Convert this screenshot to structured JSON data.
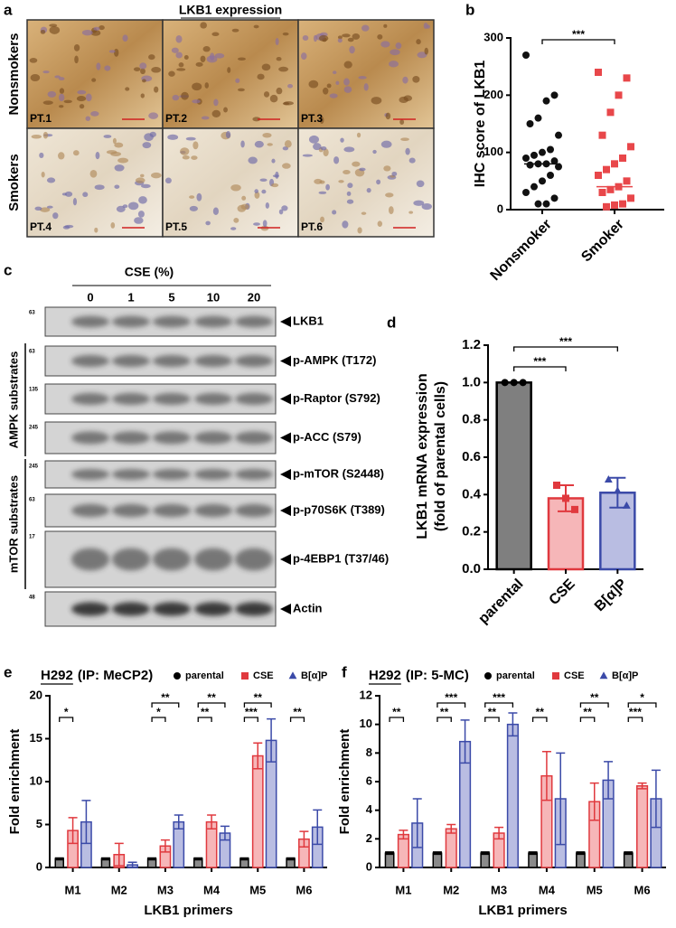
{
  "figure": {
    "panel_a": {
      "letter": "a",
      "title": "LKB1 expression",
      "row_labels": [
        "Nonsmokers",
        "Smokers"
      ],
      "images": [
        "PT.1",
        "PT.2",
        "PT.3",
        "PT.4",
        "PT.5",
        "PT.6"
      ]
    },
    "panel_c": {
      "letter": "c",
      "title": "CSE (%)",
      "lanes": [
        "0",
        "1",
        "5",
        "10",
        "20"
      ],
      "bands": [
        {
          "label": "LKB1",
          "marker": "63"
        },
        {
          "label": "p-AMPK (T172)",
          "marker": "63"
        },
        {
          "label": "p-Raptor (S792)",
          "marker": "135"
        },
        {
          "label": "p-ACC (S79)",
          "marker": "245"
        },
        {
          "label": "p-mTOR (S2448)",
          "marker": "245"
        },
        {
          "label": "p-p70S6K (T389)",
          "marker": "63"
        },
        {
          "label": "p-4EBP1 (T37/46)",
          "marker": "17"
        },
        {
          "label": "Actin",
          "marker": "48"
        }
      ],
      "groups": [
        "AMPK substrates",
        "mTOR substrates"
      ]
    }
  },
  "chart_data": [
    {
      "type": "strip",
      "letter": "b",
      "ylabel": "IHC score of LKB1",
      "categories": [
        "Nonsmoker",
        "Smoker"
      ],
      "colors": [
        "#111111",
        "#e8474a"
      ],
      "markers": [
        "circle",
        "square"
      ],
      "points": [
        [
          270,
          200,
          190,
          160,
          150,
          130,
          105,
          100,
          95,
          90,
          85,
          80,
          80,
          78,
          75,
          60,
          50,
          40,
          30,
          20,
          10,
          10
        ],
        [
          240,
          230,
          200,
          170,
          130,
          110,
          90,
          80,
          70,
          60,
          50,
          40,
          35,
          30,
          20,
          10,
          8,
          5
        ]
      ],
      "medians": [
        80,
        40
      ],
      "ylim": [
        0,
        300
      ],
      "yticks": [
        0,
        100,
        200,
        300
      ],
      "significance": "***"
    },
    {
      "type": "bar",
      "letter": "d",
      "ylabel": [
        "LKB1 mRNA expression",
        "(fold of parental cells)"
      ],
      "categories": [
        "parental",
        "CSE",
        "B[α]P"
      ],
      "values": [
        1.0,
        0.38,
        0.41
      ],
      "errors": [
        0,
        0.07,
        0.08
      ],
      "points": [
        [
          1,
          1,
          1
        ],
        [
          0.45,
          0.38,
          0.32
        ],
        [
          0.48,
          0.42,
          0.34
        ]
      ],
      "colors": [
        "#7f7f7f",
        "#f6b6b8",
        "#b9bde2"
      ],
      "edge_colors": [
        "#000000",
        "#e0393e",
        "#3b4aa8"
      ],
      "markers": [
        "circle",
        "square",
        "triangle"
      ],
      "significance": [
        null,
        "***",
        "***"
      ],
      "ylim": [
        0,
        1.2
      ],
      "yticks": [
        {
          "value": 0,
          "label": "0.0"
        },
        0.2,
        0.4,
        0.6,
        0.8,
        {
          "value": 1,
          "label": "1.0"
        },
        1.2
      ]
    },
    {
      "type": "grouped-bar",
      "letter": "e",
      "title": "H292",
      "subtitle": "(IP: MeCP2)",
      "xlabel": "LKB1 primers",
      "ylabel": "Fold enrichment",
      "categories": [
        "M1",
        "M2",
        "M3",
        "M4",
        "M5",
        "M6"
      ],
      "ylim": [
        0,
        20
      ],
      "yticks": [
        0,
        5,
        10,
        15,
        20
      ],
      "series": [
        {
          "name": "parental",
          "color": "#8a8a8a",
          "edge": "#000000",
          "marker": "circle",
          "values": [
            1,
            1,
            1,
            1,
            1,
            1
          ],
          "errors": [
            0.1,
            0.1,
            0.1,
            0.1,
            0.1,
            0.1
          ]
        },
        {
          "name": "CSE",
          "color": "#f6b6b8",
          "edge": "#e0393e",
          "marker": "square",
          "values": [
            4.3,
            1.5,
            2.5,
            5.3,
            13,
            3.3
          ],
          "errors": [
            1.5,
            1.3,
            0.7,
            0.8,
            1.5,
            0.9
          ],
          "significance": [
            "*",
            null,
            "*",
            "**",
            "***",
            "**"
          ]
        },
        {
          "name": "B[α]P",
          "color": "#b9bde2",
          "edge": "#3b4aa8",
          "marker": "triangle",
          "values": [
            5.3,
            0.3,
            5.3,
            4,
            14.8,
            4.7
          ],
          "errors": [
            2.5,
            0.3,
            0.8,
            0.8,
            2.5,
            2
          ],
          "significance": [
            null,
            null,
            "**",
            "**",
            "**",
            null
          ]
        }
      ]
    },
    {
      "type": "grouped-bar",
      "letter": "f",
      "title": "H292",
      "subtitle": "(IP: 5-MC)",
      "xlabel": "LKB1 primers",
      "ylabel": "Fold enrichment",
      "categories": [
        "M1",
        "M2",
        "M3",
        "M4",
        "M5",
        "M6"
      ],
      "ylim": [
        0,
        12
      ],
      "yticks": [
        0,
        2,
        4,
        6,
        8,
        10,
        12
      ],
      "series": [
        {
          "name": "parental",
          "color": "#8a8a8a",
          "edge": "#000000",
          "marker": "circle",
          "values": [
            1,
            1,
            1,
            1,
            1,
            1
          ],
          "errors": [
            0.08,
            0.08,
            0.08,
            0.08,
            0.08,
            0.08
          ]
        },
        {
          "name": "CSE",
          "color": "#f6b6b8",
          "edge": "#e0393e",
          "marker": "square",
          "values": [
            2.3,
            2.7,
            2.4,
            6.4,
            4.6,
            5.7
          ],
          "errors": [
            0.3,
            0.3,
            0.4,
            1.7,
            1.3,
            0.2
          ],
          "significance": [
            "**",
            "**",
            "**",
            "**",
            "**",
            "***"
          ]
        },
        {
          "name": "B[α]P",
          "color": "#b9bde2",
          "edge": "#3b4aa8",
          "marker": "triangle",
          "values": [
            3.1,
            8.8,
            10,
            4.8,
            6.1,
            4.8
          ],
          "errors": [
            1.7,
            1.5,
            0.8,
            3.2,
            1.3,
            2
          ],
          "significance": [
            null,
            "***",
            "***",
            null,
            "**",
            "*"
          ]
        }
      ]
    }
  ]
}
